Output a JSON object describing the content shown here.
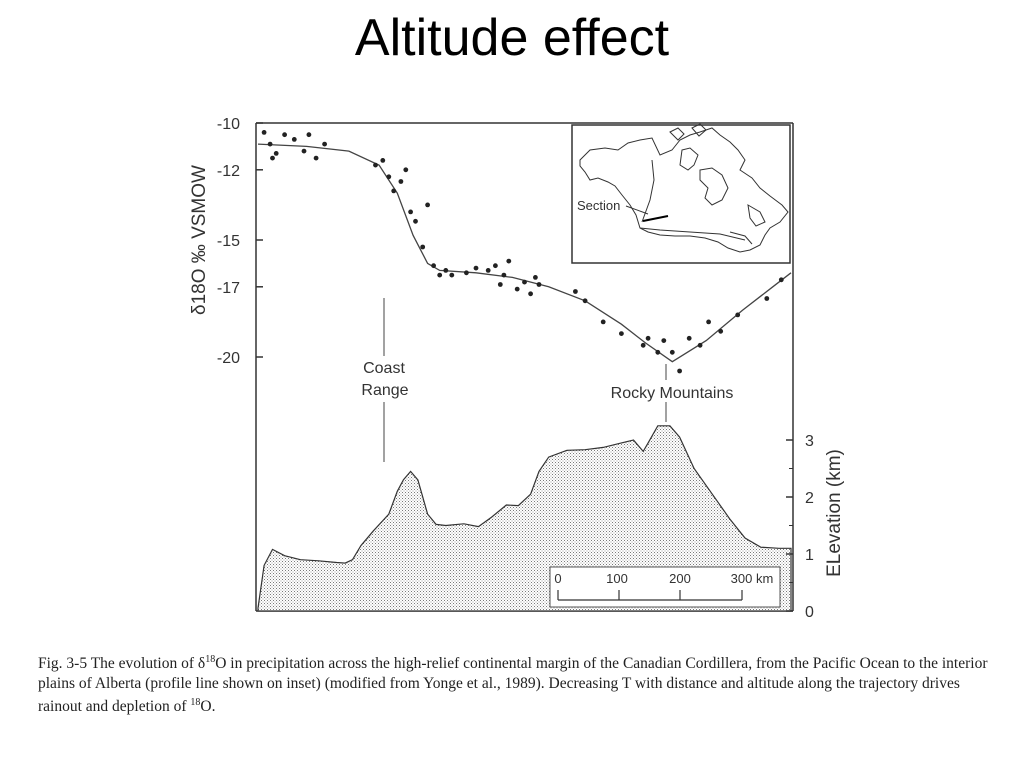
{
  "slide": {
    "title": "Altitude effect"
  },
  "chart_data": [
    {
      "type": "scatter",
      "title": "",
      "ylabel": "δ18O ‰ VSMOW",
      "ylim": [
        -20,
        -10
      ],
      "yticks": [
        "-10",
        "-12",
        "-15",
        "-17",
        "-20"
      ],
      "x_unit": "km",
      "xlim": [
        0,
        440
      ],
      "points": [
        [
          5,
          -10.4
        ],
        [
          10,
          -10.9
        ],
        [
          12,
          -11.5
        ],
        [
          15,
          -11.3
        ],
        [
          22,
          -10.5
        ],
        [
          30,
          -10.7
        ],
        [
          38,
          -11.2
        ],
        [
          42,
          -10.5
        ],
        [
          48,
          -11.5
        ],
        [
          55,
          -10.9
        ],
        [
          97,
          -11.8
        ],
        [
          103,
          -11.6
        ],
        [
          108,
          -12.3
        ],
        [
          112,
          -12.9
        ],
        [
          118,
          -12.5
        ],
        [
          122,
          -12.0
        ],
        [
          126,
          -13.8
        ],
        [
          130,
          -14.2
        ],
        [
          136,
          -15.3
        ],
        [
          140,
          -13.5
        ],
        [
          145,
          -16.1
        ],
        [
          150,
          -16.5
        ],
        [
          155,
          -16.3
        ],
        [
          160,
          -16.5
        ],
        [
          172,
          -16.4
        ],
        [
          180,
          -16.2
        ],
        [
          190,
          -16.3
        ],
        [
          196,
          -16.1
        ],
        [
          200,
          -16.9
        ],
        [
          203,
          -16.5
        ],
        [
          207,
          -15.9
        ],
        [
          214,
          -17.1
        ],
        [
          220,
          -16.8
        ],
        [
          225,
          -17.3
        ],
        [
          229,
          -16.6
        ],
        [
          232,
          -16.9
        ],
        [
          262,
          -17.2
        ],
        [
          270,
          -17.6
        ],
        [
          285,
          -18.5
        ],
        [
          300,
          -19.0
        ],
        [
          318,
          -19.5
        ],
        [
          322,
          -19.2
        ],
        [
          330,
          -19.8
        ],
        [
          335,
          -19.3
        ],
        [
          342,
          -19.8
        ],
        [
          348,
          -20.6
        ],
        [
          356,
          -19.2
        ],
        [
          365,
          -19.5
        ],
        [
          372,
          -18.5
        ],
        [
          382,
          -18.9
        ],
        [
          396,
          -18.2
        ],
        [
          420,
          -17.5
        ],
        [
          432,
          -16.7
        ]
      ],
      "trend": [
        [
          0,
          -10.9
        ],
        [
          40,
          -11.0
        ],
        [
          75,
          -11.2
        ],
        [
          100,
          -11.8
        ],
        [
          115,
          -13.0
        ],
        [
          128,
          -14.8
        ],
        [
          140,
          -16.0
        ],
        [
          150,
          -16.3
        ],
        [
          180,
          -16.4
        ],
        [
          210,
          -16.6
        ],
        [
          240,
          -17.0
        ],
        [
          270,
          -17.6
        ],
        [
          300,
          -18.6
        ],
        [
          320,
          -19.4
        ],
        [
          342,
          -20.2
        ],
        [
          370,
          -19.3
        ],
        [
          400,
          -18.0
        ],
        [
          425,
          -17.0
        ],
        [
          440,
          -16.4
        ]
      ]
    },
    {
      "type": "area",
      "title": "",
      "ylabel": "ELevation (km)",
      "ylim": [
        0,
        3
      ],
      "yticks": [
        "0",
        "1",
        "2",
        "3"
      ],
      "x_unit": "km",
      "xlim": [
        0,
        440
      ],
      "profile": [
        [
          0,
          0.05
        ],
        [
          5,
          0.8
        ],
        [
          12,
          1.08
        ],
        [
          22,
          0.97
        ],
        [
          35,
          0.9
        ],
        [
          50,
          0.88
        ],
        [
          65,
          0.85
        ],
        [
          72,
          0.84
        ],
        [
          78,
          0.9
        ],
        [
          85,
          1.15
        ],
        [
          95,
          1.4
        ],
        [
          108,
          1.7
        ],
        [
          115,
          2.1
        ],
        [
          120,
          2.3
        ],
        [
          126,
          2.45
        ],
        [
          132,
          2.3
        ],
        [
          140,
          1.7
        ],
        [
          147,
          1.52
        ],
        [
          155,
          1.5
        ],
        [
          170,
          1.53
        ],
        [
          182,
          1.48
        ],
        [
          193,
          1.65
        ],
        [
          205,
          1.86
        ],
        [
          215,
          1.85
        ],
        [
          225,
          2.05
        ],
        [
          232,
          2.45
        ],
        [
          240,
          2.7
        ],
        [
          255,
          2.82
        ],
        [
          270,
          2.83
        ],
        [
          285,
          2.87
        ],
        [
          300,
          2.95
        ],
        [
          310,
          3.0
        ],
        [
          318,
          2.8
        ],
        [
          322,
          2.95
        ],
        [
          330,
          3.25
        ],
        [
          340,
          3.25
        ],
        [
          348,
          3.05
        ],
        [
          360,
          2.5
        ],
        [
          375,
          2.05
        ],
        [
          390,
          1.6
        ],
        [
          402,
          1.28
        ],
        [
          415,
          1.12
        ],
        [
          430,
          1.1
        ],
        [
          440,
          1.1
        ]
      ]
    }
  ],
  "annotations": {
    "coast_line1": "Coast",
    "coast_line2": "Range",
    "rocky": "Rocky Mountains"
  },
  "scalebar": {
    "labels": [
      "0",
      "100",
      "200",
      "300 km"
    ]
  },
  "inset": {
    "label": "Section"
  },
  "caption": {
    "fig": "Fig. 3-5",
    "part1": "  The evolution of δ",
    "sup1": "18",
    "part2": "O in precipitation across the high-relief continental margin of the Canadian Cordillera, from the Pacific Ocean to the interior plains of Alberta (profile line shown on inset) (modified from Yonge et al., 1989). Decreasing T with distance and altitude along the trajectory drives rainout and depletion of ",
    "sup2": "18",
    "part3": "O."
  }
}
